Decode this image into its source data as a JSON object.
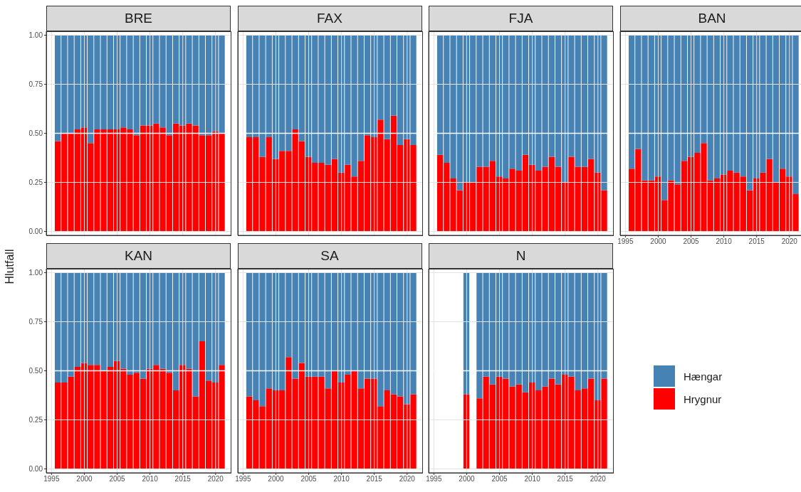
{
  "chart_data": [
    {
      "type": "bar",
      "title": "BRE",
      "stacked": true,
      "x": [
        1996,
        1997,
        1998,
        1999,
        2000,
        2001,
        2002,
        2003,
        2004,
        2005,
        2006,
        2007,
        2008,
        2009,
        2010,
        2011,
        2012,
        2013,
        2014,
        2015,
        2016,
        2017,
        2018,
        2019,
        2020,
        2021
      ],
      "xlim": [
        1994.2,
        2022.3
      ],
      "xticks": [
        1995,
        2000,
        2005,
        2010,
        2015,
        2020
      ],
      "ylim": [
        -0.02,
        1.02
      ],
      "yticks": [
        {
          "value": 0,
          "label": "0.00"
        },
        {
          "value": 0.25,
          "label": "0.25"
        },
        {
          "value": 0.5,
          "label": "0.50"
        },
        {
          "value": 0.75,
          "label": "0.75"
        },
        {
          "value": 1,
          "label": "1.00"
        }
      ],
      "grid": true,
      "tick_labels": "y",
      "ref_lines": [
        {
          "axis": "y",
          "value": 0.5,
          "color": "#ffffff"
        }
      ],
      "series": [
        {
          "color": "#ff0000",
          "values": [
            0.46,
            0.5,
            0.5,
            0.52,
            0.53,
            0.45,
            0.52,
            0.52,
            0.52,
            0.52,
            0.53,
            0.52,
            0.49,
            0.54,
            0.54,
            0.55,
            0.53,
            0.49,
            0.55,
            0.54,
            0.55,
            0.54,
            0.49,
            0.49,
            0.51,
            0.5
          ]
        },
        {
          "color": "#4682b4",
          "values": [
            0.54,
            0.5,
            0.5,
            0.48,
            0.47,
            0.55,
            0.48,
            0.48,
            0.48,
            0.48,
            0.47,
            0.48,
            0.51,
            0.46,
            0.46,
            0.45,
            0.47,
            0.51,
            0.45,
            0.46,
            0.45,
            0.46,
            0.51,
            0.51,
            0.49,
            0.5
          ]
        }
      ]
    },
    {
      "type": "bar",
      "title": "FAX",
      "stacked": true,
      "x": [
        1996,
        1997,
        1998,
        1999,
        2000,
        2001,
        2002,
        2003,
        2004,
        2005,
        2006,
        2007,
        2008,
        2009,
        2010,
        2011,
        2012,
        2013,
        2014,
        2015,
        2016,
        2017,
        2018,
        2019,
        2020,
        2021
      ],
      "xlim": [
        1994.2,
        2022.3
      ],
      "xticks": [
        1995,
        2000,
        2005,
        2010,
        2015,
        2020
      ],
      "ylim": [
        -0.02,
        1.02
      ],
      "yticks": [
        0,
        0.25,
        0.5,
        0.75,
        1
      ],
      "grid": true,
      "tick_labels": false,
      "ref_lines": [
        {
          "axis": "y",
          "value": 0.5,
          "color": "#ffffff"
        }
      ],
      "series": [
        {
          "color": "#ff0000",
          "values": [
            0.48,
            0.48,
            0.38,
            0.48,
            0.37,
            0.41,
            0.41,
            0.52,
            0.46,
            0.38,
            0.35,
            0.35,
            0.34,
            0.37,
            0.3,
            0.34,
            0.28,
            0.36,
            0.49,
            0.48,
            0.57,
            0.47,
            0.59,
            0.44,
            0.47,
            0.44
          ]
        },
        {
          "color": "#4682b4",
          "values": [
            0.52,
            0.52,
            0.62,
            0.52,
            0.63,
            0.59,
            0.59,
            0.48,
            0.54,
            0.62,
            0.65,
            0.65,
            0.66,
            0.63,
            0.7,
            0.66,
            0.72,
            0.64,
            0.51,
            0.52,
            0.43,
            0.53,
            0.41,
            0.56,
            0.53,
            0.56
          ]
        }
      ]
    },
    {
      "type": "bar",
      "title": "FJA",
      "stacked": true,
      "x": [
        1996,
        1997,
        1998,
        1999,
        2000,
        2001,
        2002,
        2003,
        2004,
        2005,
        2006,
        2007,
        2008,
        2009,
        2010,
        2011,
        2012,
        2013,
        2014,
        2015,
        2016,
        2017,
        2018,
        2019,
        2020,
        2021
      ],
      "xlim": [
        1994.2,
        2022.3
      ],
      "xticks": [
        1995,
        2000,
        2005,
        2010,
        2015,
        2020
      ],
      "ylim": [
        -0.02,
        1.02
      ],
      "yticks": [
        0,
        0.25,
        0.5,
        0.75,
        1
      ],
      "grid": true,
      "tick_labels": false,
      "ref_lines": [
        {
          "axis": "y",
          "value": 0.5,
          "color": "#ffffff"
        }
      ],
      "series": [
        {
          "color": "#ff0000",
          "values": [
            0.39,
            0.35,
            0.27,
            0.21,
            0.25,
            0.25,
            0.33,
            0.33,
            0.36,
            0.28,
            0.27,
            0.32,
            0.31,
            0.39,
            0.34,
            0.31,
            0.33,
            0.38,
            0.33,
            0.25,
            0.38,
            0.33,
            0.33,
            0.37,
            0.3,
            0.21
          ]
        },
        {
          "color": "#4682b4",
          "values": [
            0.61,
            0.65,
            0.73,
            0.79,
            0.75,
            0.75,
            0.67,
            0.67,
            0.64,
            0.72,
            0.73,
            0.68,
            0.69,
            0.61,
            0.66,
            0.69,
            0.67,
            0.62,
            0.67,
            0.75,
            0.62,
            0.67,
            0.67,
            0.63,
            0.7,
            0.79
          ]
        }
      ]
    },
    {
      "type": "bar",
      "title": "BAN",
      "stacked": true,
      "x": [
        1996,
        1997,
        1998,
        1999,
        2000,
        2001,
        2002,
        2003,
        2004,
        2005,
        2006,
        2007,
        2008,
        2009,
        2010,
        2011,
        2012,
        2013,
        2014,
        2015,
        2016,
        2017,
        2018,
        2019,
        2020,
        2021
      ],
      "xlim": [
        1994.2,
        2022.3
      ],
      "xticks": [
        1995,
        2000,
        2005,
        2010,
        2015,
        2020
      ],
      "ylim": [
        -0.02,
        1.02
      ],
      "yticks": [
        0,
        0.25,
        0.5,
        0.75,
        1
      ],
      "grid": true,
      "tick_labels": "x",
      "ref_lines": [
        {
          "axis": "y",
          "value": 0.5,
          "color": "#ffffff"
        }
      ],
      "series": [
        {
          "color": "#ff0000",
          "values": [
            0.32,
            0.42,
            0.26,
            0.26,
            0.28,
            0.16,
            0.26,
            0.24,
            0.36,
            0.38,
            0.4,
            0.45,
            0.26,
            0.27,
            0.29,
            0.31,
            0.3,
            0.28,
            0.21,
            0.27,
            0.3,
            0.37,
            0.25,
            0.32,
            0.28,
            0.19
          ]
        },
        {
          "color": "#4682b4",
          "values": [
            0.68,
            0.58,
            0.74,
            0.74,
            0.72,
            0.84,
            0.74,
            0.76,
            0.64,
            0.62,
            0.6,
            0.55,
            0.74,
            0.73,
            0.71,
            0.69,
            0.7,
            0.72,
            0.79,
            0.73,
            0.7,
            0.63,
            0.75,
            0.68,
            0.72,
            0.81
          ]
        }
      ]
    },
    {
      "type": "bar",
      "title": "KAN",
      "ylabel": "Hlutfall",
      "stacked": true,
      "x": [
        1996,
        1997,
        1998,
        1999,
        2000,
        2001,
        2002,
        2003,
        2004,
        2005,
        2006,
        2007,
        2008,
        2009,
        2010,
        2011,
        2012,
        2013,
        2014,
        2015,
        2016,
        2017,
        2018,
        2019,
        2020,
        2021
      ],
      "xlim": [
        1994.2,
        2022.3
      ],
      "xticks": [
        1995,
        2000,
        2005,
        2010,
        2015,
        2020
      ],
      "ylim": [
        -0.02,
        1.02
      ],
      "yticks": [
        {
          "value": 0,
          "label": "0.00"
        },
        {
          "value": 0.25,
          "label": "0.25"
        },
        {
          "value": 0.5,
          "label": "0.50"
        },
        {
          "value": 0.75,
          "label": "0.75"
        },
        {
          "value": 1,
          "label": "1.00"
        }
      ],
      "grid": true,
      "ref_lines": [
        {
          "axis": "y",
          "value": 0.5,
          "color": "#ffffff"
        }
      ],
      "series": [
        {
          "color": "#ff0000",
          "values": [
            0.44,
            0.44,
            0.47,
            0.52,
            0.54,
            0.53,
            0.53,
            0.5,
            0.52,
            0.55,
            0.51,
            0.48,
            0.49,
            0.46,
            0.51,
            0.53,
            0.51,
            0.49,
            0.4,
            0.53,
            0.51,
            0.37,
            0.65,
            0.45,
            0.44,
            0.53
          ]
        },
        {
          "color": "#4682b4",
          "values": [
            0.56,
            0.56,
            0.53,
            0.48,
            0.46,
            0.47,
            0.47,
            0.5,
            0.48,
            0.45,
            0.49,
            0.52,
            0.51,
            0.54,
            0.49,
            0.47,
            0.49,
            0.51,
            0.6,
            0.47,
            0.49,
            0.63,
            0.35,
            0.55,
            0.56,
            0.47
          ]
        }
      ]
    },
    {
      "type": "bar",
      "title": "SA",
      "stacked": true,
      "x": [
        1996,
        1997,
        1998,
        1999,
        2000,
        2001,
        2002,
        2003,
        2004,
        2005,
        2006,
        2007,
        2008,
        2009,
        2010,
        2011,
        2012,
        2013,
        2014,
        2015,
        2016,
        2017,
        2018,
        2019,
        2020,
        2021
      ],
      "xlim": [
        1994.2,
        2022.3
      ],
      "xticks": [
        1995,
        2000,
        2005,
        2010,
        2015,
        2020
      ],
      "ylim": [
        -0.02,
        1.02
      ],
      "yticks": [
        0,
        0.25,
        0.5,
        0.75,
        1
      ],
      "grid": true,
      "tick_labels": "x",
      "ref_lines": [
        {
          "axis": "y",
          "value": 0.5,
          "color": "#ffffff"
        }
      ],
      "series": [
        {
          "color": "#ff0000",
          "values": [
            0.37,
            0.35,
            0.32,
            0.41,
            0.4,
            0.4,
            0.57,
            0.46,
            0.54,
            0.47,
            0.47,
            0.47,
            0.41,
            0.5,
            0.44,
            0.48,
            0.5,
            0.41,
            0.46,
            0.46,
            0.32,
            0.4,
            0.38,
            0.37,
            0.33,
            0.38
          ]
        },
        {
          "color": "#4682b4",
          "values": [
            0.63,
            0.65,
            0.68,
            0.59,
            0.6,
            0.6,
            0.43,
            0.54,
            0.46,
            0.53,
            0.53,
            0.53,
            0.59,
            0.5,
            0.56,
            0.52,
            0.5,
            0.59,
            0.54,
            0.54,
            0.68,
            0.6,
            0.62,
            0.63,
            0.67,
            0.62
          ]
        }
      ]
    },
    {
      "type": "bar",
      "title": "N",
      "stacked": true,
      "legend": "right",
      "x": [
        2000,
        2002,
        2003,
        2004,
        2005,
        2006,
        2007,
        2008,
        2009,
        2010,
        2011,
        2012,
        2013,
        2014,
        2015,
        2016,
        2017,
        2018,
        2019,
        2020,
        2021
      ],
      "xlim": [
        1994.2,
        2022.3
      ],
      "xticks": [
        1995,
        2000,
        2005,
        2010,
        2015,
        2020
      ],
      "ylim": [
        -0.02,
        1.02
      ],
      "yticks": [
        0,
        0.25,
        0.5,
        0.75,
        1
      ],
      "grid": true,
      "tick_labels": "x",
      "ref_lines": [
        {
          "axis": "y",
          "value": 0.5,
          "color": "#ffffff"
        }
      ],
      "series": [
        {
          "name": "Hrygnur",
          "color": "#ff0000",
          "values": [
            0.38,
            0.36,
            0.47,
            0.43,
            0.47,
            0.46,
            0.42,
            0.43,
            0.39,
            0.44,
            0.4,
            0.42,
            0.46,
            0.43,
            0.48,
            0.47,
            0.4,
            0.41,
            0.46,
            0.35,
            0.46
          ]
        },
        {
          "name": "Hængar",
          "color": "#4682b4",
          "values": [
            0.62,
            0.64,
            0.53,
            0.57,
            0.53,
            0.54,
            0.58,
            0.57,
            0.61,
            0.56,
            0.6,
            0.58,
            0.54,
            0.57,
            0.52,
            0.53,
            0.6,
            0.59,
            0.54,
            0.65,
            0.54
          ]
        }
      ]
    }
  ]
}
